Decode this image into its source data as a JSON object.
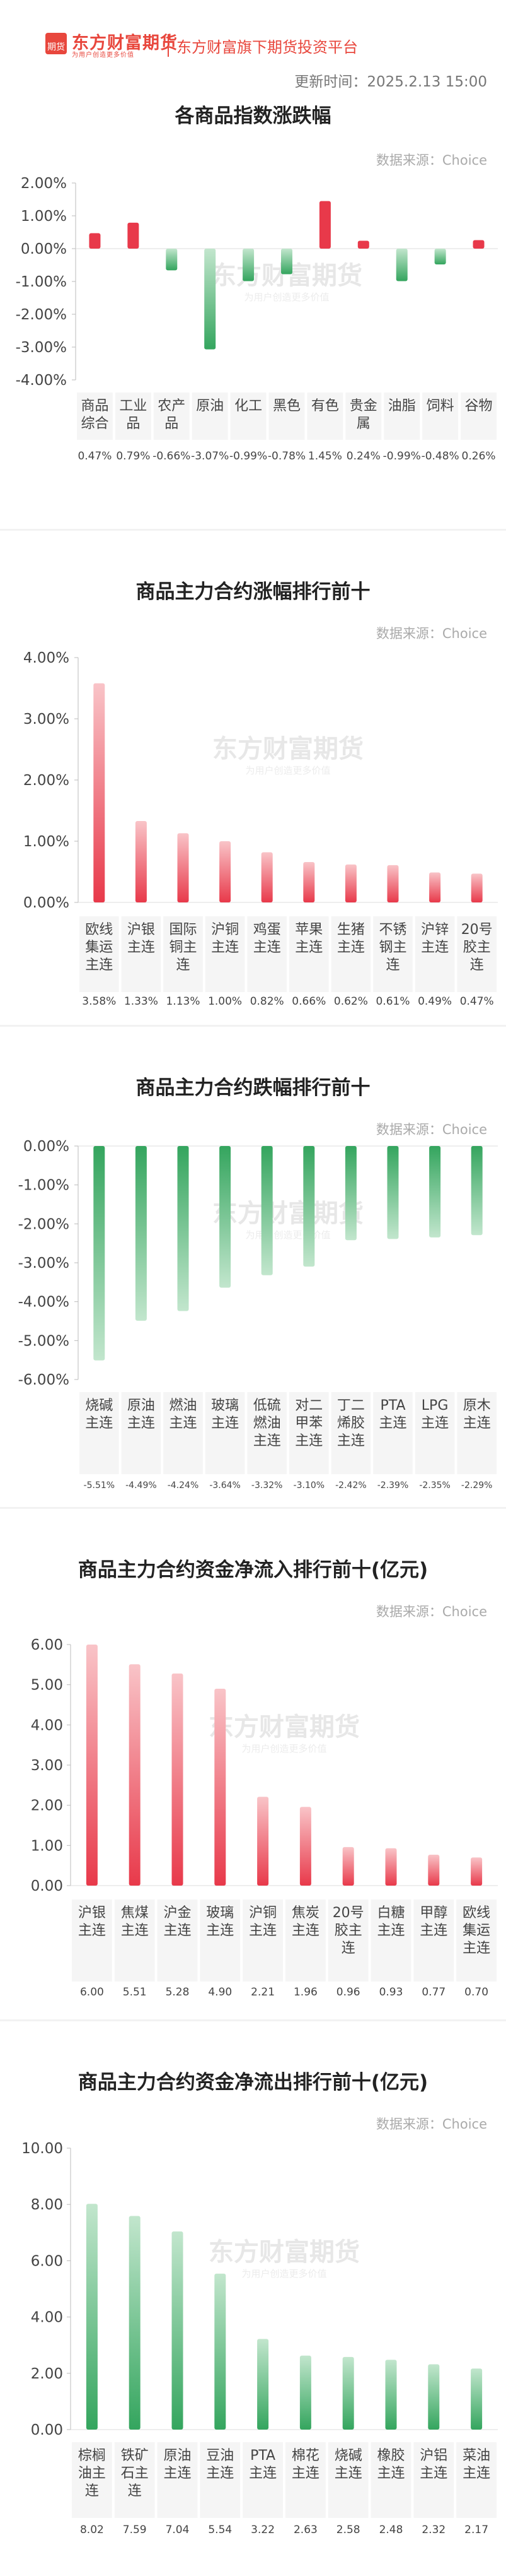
{
  "header": {
    "logo_badge": "期货",
    "logo_name": "东方财富期货",
    "logo_slogan": "为用户创造更多价值",
    "platform_name": "东方财富旗下期货投资平台",
    "update_time": "更新时间：2025.2.13 15:00"
  },
  "watermark": {
    "name": "东方财富期货",
    "slogan": "为用户创造更多价值"
  },
  "colors": {
    "up_dark": "#e8394a",
    "up_light": "#f9c4c8",
    "down_dark": "#34a55e",
    "down_light": "#c2e6cd",
    "cat_bg": "#f5f5f5"
  },
  "chart_data": [
    {
      "type": "bar",
      "title": "各商品指数涨跌幅",
      "source": "数据来源：Choice",
      "ylim": [
        -4,
        2
      ],
      "ticks": [
        2,
        1,
        0,
        -1,
        -2,
        -3,
        -4
      ],
      "tick_labels": [
        "2.00%",
        "1.00%",
        "0.00%",
        "-1.00%",
        "-2.00%",
        "-3.00%",
        "-4.00%"
      ],
      "categories": [
        "商品\n综合",
        "工业\n品",
        "农产\n品",
        "原油",
        "化工",
        "黑色",
        "有色",
        "贵金\n属",
        "油脂",
        "饲料",
        "谷物"
      ],
      "values": [
        0.47,
        0.79,
        -0.66,
        -3.07,
        -0.99,
        -0.78,
        1.45,
        0.24,
        -0.99,
        -0.48,
        0.26
      ],
      "value_labels": [
        "0.47%",
        "0.79%",
        "-0.66%",
        "-3.07%",
        "-0.99%",
        "-0.78%",
        "1.45%",
        "0.24%",
        "-0.99%",
        "-0.48%",
        "0.26%"
      ]
    },
    {
      "type": "bar",
      "title": "商品主力合约涨幅排行前十",
      "source": "数据来源：Choice",
      "ylim": [
        0,
        4
      ],
      "ticks": [
        4,
        3,
        2,
        1,
        0
      ],
      "tick_labels": [
        "4.00%",
        "3.00%",
        "2.00%",
        "1.00%",
        "0.00%"
      ],
      "categories": [
        "欧线\n集运\n主连",
        "沪银\n主连",
        "国际\n铜主\n连",
        "沪铜\n主连",
        "鸡蛋\n主连",
        "苹果\n主连",
        "生猪\n主连",
        "不锈\n钢主\n连",
        "沪锌\n主连",
        "20号\n胶主\n连"
      ],
      "values": [
        3.58,
        1.33,
        1.13,
        1.0,
        0.82,
        0.66,
        0.62,
        0.61,
        0.49,
        0.47
      ],
      "value_labels": [
        "3.58%",
        "1.33%",
        "1.13%",
        "1.00%",
        "0.82%",
        "0.66%",
        "0.62%",
        "0.61%",
        "0.49%",
        "0.47%"
      ]
    },
    {
      "type": "bar",
      "title": "商品主力合约跌幅排行前十",
      "source": "数据来源：Choice",
      "ylim": [
        -6,
        0
      ],
      "ticks": [
        0,
        -1,
        -2,
        -3,
        -4,
        -5,
        -6
      ],
      "tick_labels": [
        "0.00%",
        "-1.00%",
        "-2.00%",
        "-3.00%",
        "-4.00%",
        "-5.00%",
        "-6.00%"
      ],
      "categories": [
        "烧碱\n主连",
        "原油\n主连",
        "燃油\n主连",
        "玻璃\n主连",
        "低硫\n燃油\n主连",
        "对二\n甲苯\n主连",
        "丁二\n烯胶\n主连",
        "PTA\n主连",
        "LPG\n主连",
        "原木\n主连"
      ],
      "values": [
        -5.51,
        -4.49,
        -4.24,
        -3.64,
        -3.32,
        -3.1,
        -2.42,
        -2.39,
        -2.35,
        -2.29
      ],
      "value_labels": [
        "-5.51%",
        "-4.49%",
        "-4.24%",
        "-3.64%",
        "-3.32%",
        "-3.10%",
        "-2.42%",
        "-2.39%",
        "-2.35%",
        "-2.29%"
      ]
    },
    {
      "type": "bar",
      "title": "商品主力合约资金净流入排行前十(亿元)",
      "source": "数据来源：Choice",
      "ylim": [
        0,
        6
      ],
      "ticks": [
        6,
        5,
        4,
        3,
        2,
        1,
        0
      ],
      "tick_labels": [
        "6.00",
        "5.00",
        "4.00",
        "3.00",
        "2.00",
        "1.00",
        "0.00"
      ],
      "categories": [
        "沪银\n主连",
        "焦煤\n主连",
        "沪金\n主连",
        "玻璃\n主连",
        "沪铜\n主连",
        "焦炭\n主连",
        "20号\n胶主\n连",
        "白糖\n主连",
        "甲醇\n主连",
        "欧线\n集运\n主连"
      ],
      "values": [
        6.0,
        5.51,
        5.28,
        4.9,
        2.21,
        1.96,
        0.96,
        0.93,
        0.77,
        0.7
      ],
      "value_labels": [
        "6.00",
        "5.51",
        "5.28",
        "4.90",
        "2.21",
        "1.96",
        "0.96",
        "0.93",
        "0.77",
        "0.70"
      ]
    },
    {
      "type": "bar",
      "title": "商品主力合约资金净流出排行前十(亿元)",
      "source": "数据来源：Choice",
      "ylim": [
        0,
        10
      ],
      "ticks": [
        10,
        8,
        6,
        4,
        2,
        0
      ],
      "tick_labels": [
        "10.00",
        "8.00",
        "6.00",
        "4.00",
        "2.00",
        "0.00"
      ],
      "categories": [
        "棕榈\n油主\n连",
        "铁矿\n石主\n连",
        "原油\n主连",
        "豆油\n主连",
        "PTA\n主连",
        "棉花\n主连",
        "烧碱\n主连",
        "橡胶\n主连",
        "沪铝\n主连",
        "菜油\n主连"
      ],
      "values": [
        8.02,
        7.59,
        7.04,
        5.54,
        3.22,
        2.63,
        2.58,
        2.48,
        2.32,
        2.17
      ],
      "value_labels": [
        "8.02",
        "7.59",
        "7.04",
        "5.54",
        "3.22",
        "2.63",
        "2.58",
        "2.48",
        "2.32",
        "2.17"
      ]
    }
  ]
}
